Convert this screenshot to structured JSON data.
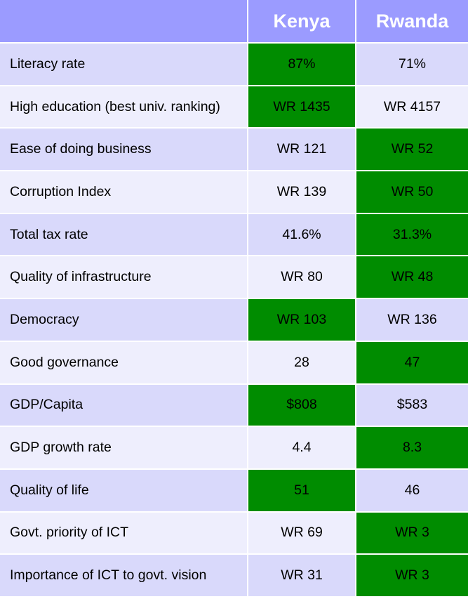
{
  "colors": {
    "header_bg": "#9b9bff",
    "header_text": "#ffffff",
    "row_odd": "#d9d9fb",
    "row_even": "#eeeefd",
    "highlight": "#008c00"
  },
  "header": {
    "col1": "",
    "col2": "Kenya",
    "col3": "Rwanda"
  },
  "rows": [
    {
      "label": "Literacy rate",
      "kenya": "87%",
      "rwanda": "71%",
      "highlight": "kenya"
    },
    {
      "label": "High education (best univ. ranking)",
      "kenya": "WR 1435",
      "rwanda": "WR 4157",
      "highlight": "kenya"
    },
    {
      "label": "Ease of doing business",
      "kenya": "WR 121",
      "rwanda": "WR 52",
      "highlight": "rwanda"
    },
    {
      "label": "Corruption Index",
      "kenya": "WR 139",
      "rwanda": "WR 50",
      "highlight": "rwanda"
    },
    {
      "label": "Total tax rate",
      "kenya": "41.6%",
      "rwanda": "31.3%",
      "highlight": "rwanda"
    },
    {
      "label": "Quality of infrastructure",
      "kenya": "WR 80",
      "rwanda": "WR 48",
      "highlight": "rwanda"
    },
    {
      "label": "Democracy",
      "kenya": "WR 103",
      "rwanda": "WR 136",
      "highlight": "kenya"
    },
    {
      "label": "Good governance",
      "kenya": "28",
      "rwanda": "47",
      "highlight": "rwanda"
    },
    {
      "label": "GDP/Capita",
      "kenya": "$808",
      "rwanda": "$583",
      "highlight": "kenya"
    },
    {
      "label": "GDP growth rate",
      "kenya": "4.4",
      "rwanda": "8.3",
      "highlight": "rwanda"
    },
    {
      "label": "Quality of life",
      "kenya": "51",
      "rwanda": "46",
      "highlight": "kenya"
    },
    {
      "label": "Govt. priority of ICT",
      "kenya": "WR 69",
      "rwanda": "WR 3",
      "highlight": "rwanda"
    },
    {
      "label": "Importance of ICT to govt. vision",
      "kenya": "WR 31",
      "rwanda": "WR 3",
      "highlight": "rwanda"
    }
  ]
}
